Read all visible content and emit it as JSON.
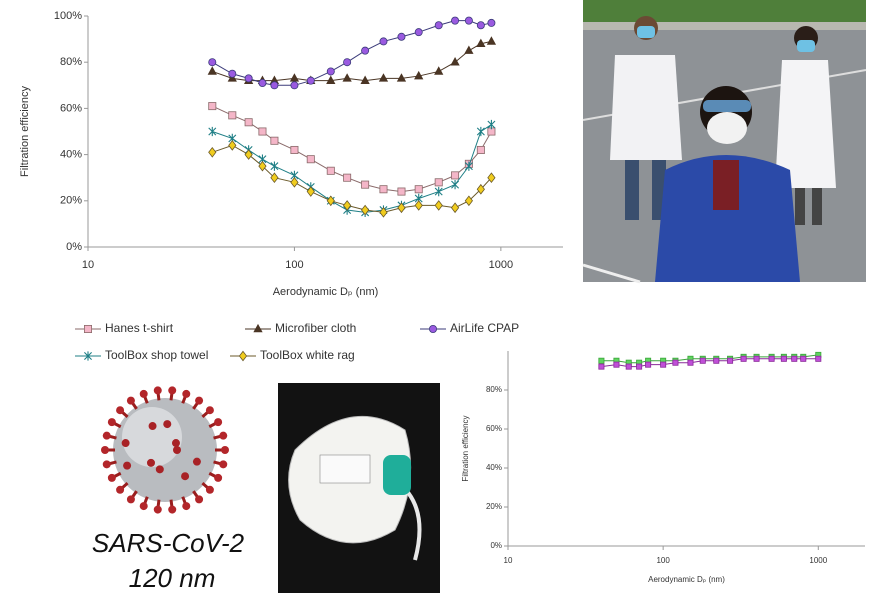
{
  "chart_data": [
    {
      "type": "line",
      "ylabel": "Filtration efficiency",
      "xlabel": "Aerodynamic Dₚ (nm)",
      "log_x": true,
      "grid": false,
      "legend": "below",
      "xlim": [
        10,
        2000
      ],
      "xticks": [
        10,
        100,
        1000
      ],
      "ylim": [
        0,
        1
      ],
      "yticks": [
        {
          "value": 0,
          "label": "0%"
        },
        {
          "value": 0.2,
          "label": "20%"
        },
        {
          "value": 0.4,
          "label": "40%"
        },
        {
          "value": 0.6,
          "label": "60%"
        },
        {
          "value": 0.8,
          "label": "80%"
        },
        {
          "value": 1,
          "label": "100%"
        }
      ],
      "x": [
        40,
        50,
        60,
        70,
        80,
        100,
        120,
        150,
        180,
        220,
        270,
        330,
        400,
        500,
        600,
        700,
        800,
        900
      ],
      "series": [
        {
          "name": "Hanes t-shirt",
          "color": "#8a6a6a",
          "fill": "#f4b6c8",
          "marker": "square",
          "values": [
            0.61,
            0.57,
            0.54,
            0.5,
            0.46,
            0.42,
            0.38,
            0.33,
            0.3,
            0.27,
            0.25,
            0.24,
            0.25,
            0.28,
            0.31,
            0.36,
            0.42,
            0.5
          ]
        },
        {
          "name": "Microfiber cloth",
          "color": "#4a3524",
          "fill": "#4a3524",
          "marker": "triangle",
          "values": [
            0.76,
            0.73,
            0.72,
            0.72,
            0.72,
            0.73,
            0.72,
            0.72,
            0.73,
            0.72,
            0.73,
            0.73,
            0.74,
            0.76,
            0.8,
            0.85,
            0.88,
            0.89
          ]
        },
        {
          "name": "AirLife CPAP",
          "color": "#3b3b7a",
          "fill": "#9a5ae0",
          "marker": "circle",
          "values": [
            0.8,
            0.75,
            0.73,
            0.71,
            0.7,
            0.7,
            0.72,
            0.76,
            0.8,
            0.85,
            0.89,
            0.91,
            0.93,
            0.96,
            0.98,
            0.98,
            0.96,
            0.97
          ]
        },
        {
          "name": "ToolBox shop towel",
          "color": "#1f7f86",
          "fill": "#1f7f86",
          "marker": "asterisk",
          "values": [
            0.5,
            0.47,
            0.42,
            0.38,
            0.35,
            0.31,
            0.26,
            0.2,
            0.16,
            0.15,
            0.16,
            0.18,
            0.21,
            0.24,
            0.27,
            0.35,
            0.5,
            0.53
          ]
        },
        {
          "name": "ToolBox white rag",
          "color": "#6b5a2a",
          "fill": "#f0cc1e",
          "marker": "diamond",
          "values": [
            0.41,
            0.44,
            0.4,
            0.35,
            0.3,
            0.28,
            0.24,
            0.2,
            0.18,
            0.16,
            0.15,
            0.17,
            0.18,
            0.18,
            0.17,
            0.2,
            0.25,
            0.3
          ]
        }
      ]
    },
    {
      "type": "line",
      "ylabel": "Filtration efficiency",
      "xlabel": "Aerodynamic Dₚ (nm)",
      "log_x": true,
      "grid": false,
      "xlim": [
        10,
        2000
      ],
      "xticks": [
        10,
        100,
        1000
      ],
      "ylim": [
        0,
        1
      ],
      "yticks": [
        {
          "value": 0,
          "label": "0%"
        },
        {
          "value": 0.2,
          "label": "20%"
        },
        {
          "value": 0.4,
          "label": "40%"
        },
        {
          "value": 0.6,
          "label": "60%"
        },
        {
          "value": 0.8,
          "label": "80%"
        }
      ],
      "x": [
        40,
        50,
        60,
        70,
        80,
        100,
        120,
        150,
        180,
        220,
        270,
        330,
        400,
        500,
        600,
        700,
        800,
        1000
      ],
      "series": [
        {
          "color": "#3aa53a",
          "fill": "#5fd45f",
          "marker": "square",
          "values": [
            0.95,
            0.95,
            0.94,
            0.94,
            0.95,
            0.95,
            0.95,
            0.96,
            0.96,
            0.96,
            0.96,
            0.97,
            0.97,
            0.97,
            0.97,
            0.97,
            0.97,
            0.98
          ]
        },
        {
          "color": "#8a2a9a",
          "fill": "#c04fd8",
          "marker": "square",
          "values": [
            0.92,
            0.93,
            0.92,
            0.92,
            0.93,
            0.93,
            0.94,
            0.94,
            0.95,
            0.95,
            0.95,
            0.96,
            0.96,
            0.96,
            0.96,
            0.96,
            0.96,
            0.96
          ]
        }
      ]
    }
  ],
  "caption": {
    "name": "SARS-CoV-2",
    "size": "120 nm"
  }
}
